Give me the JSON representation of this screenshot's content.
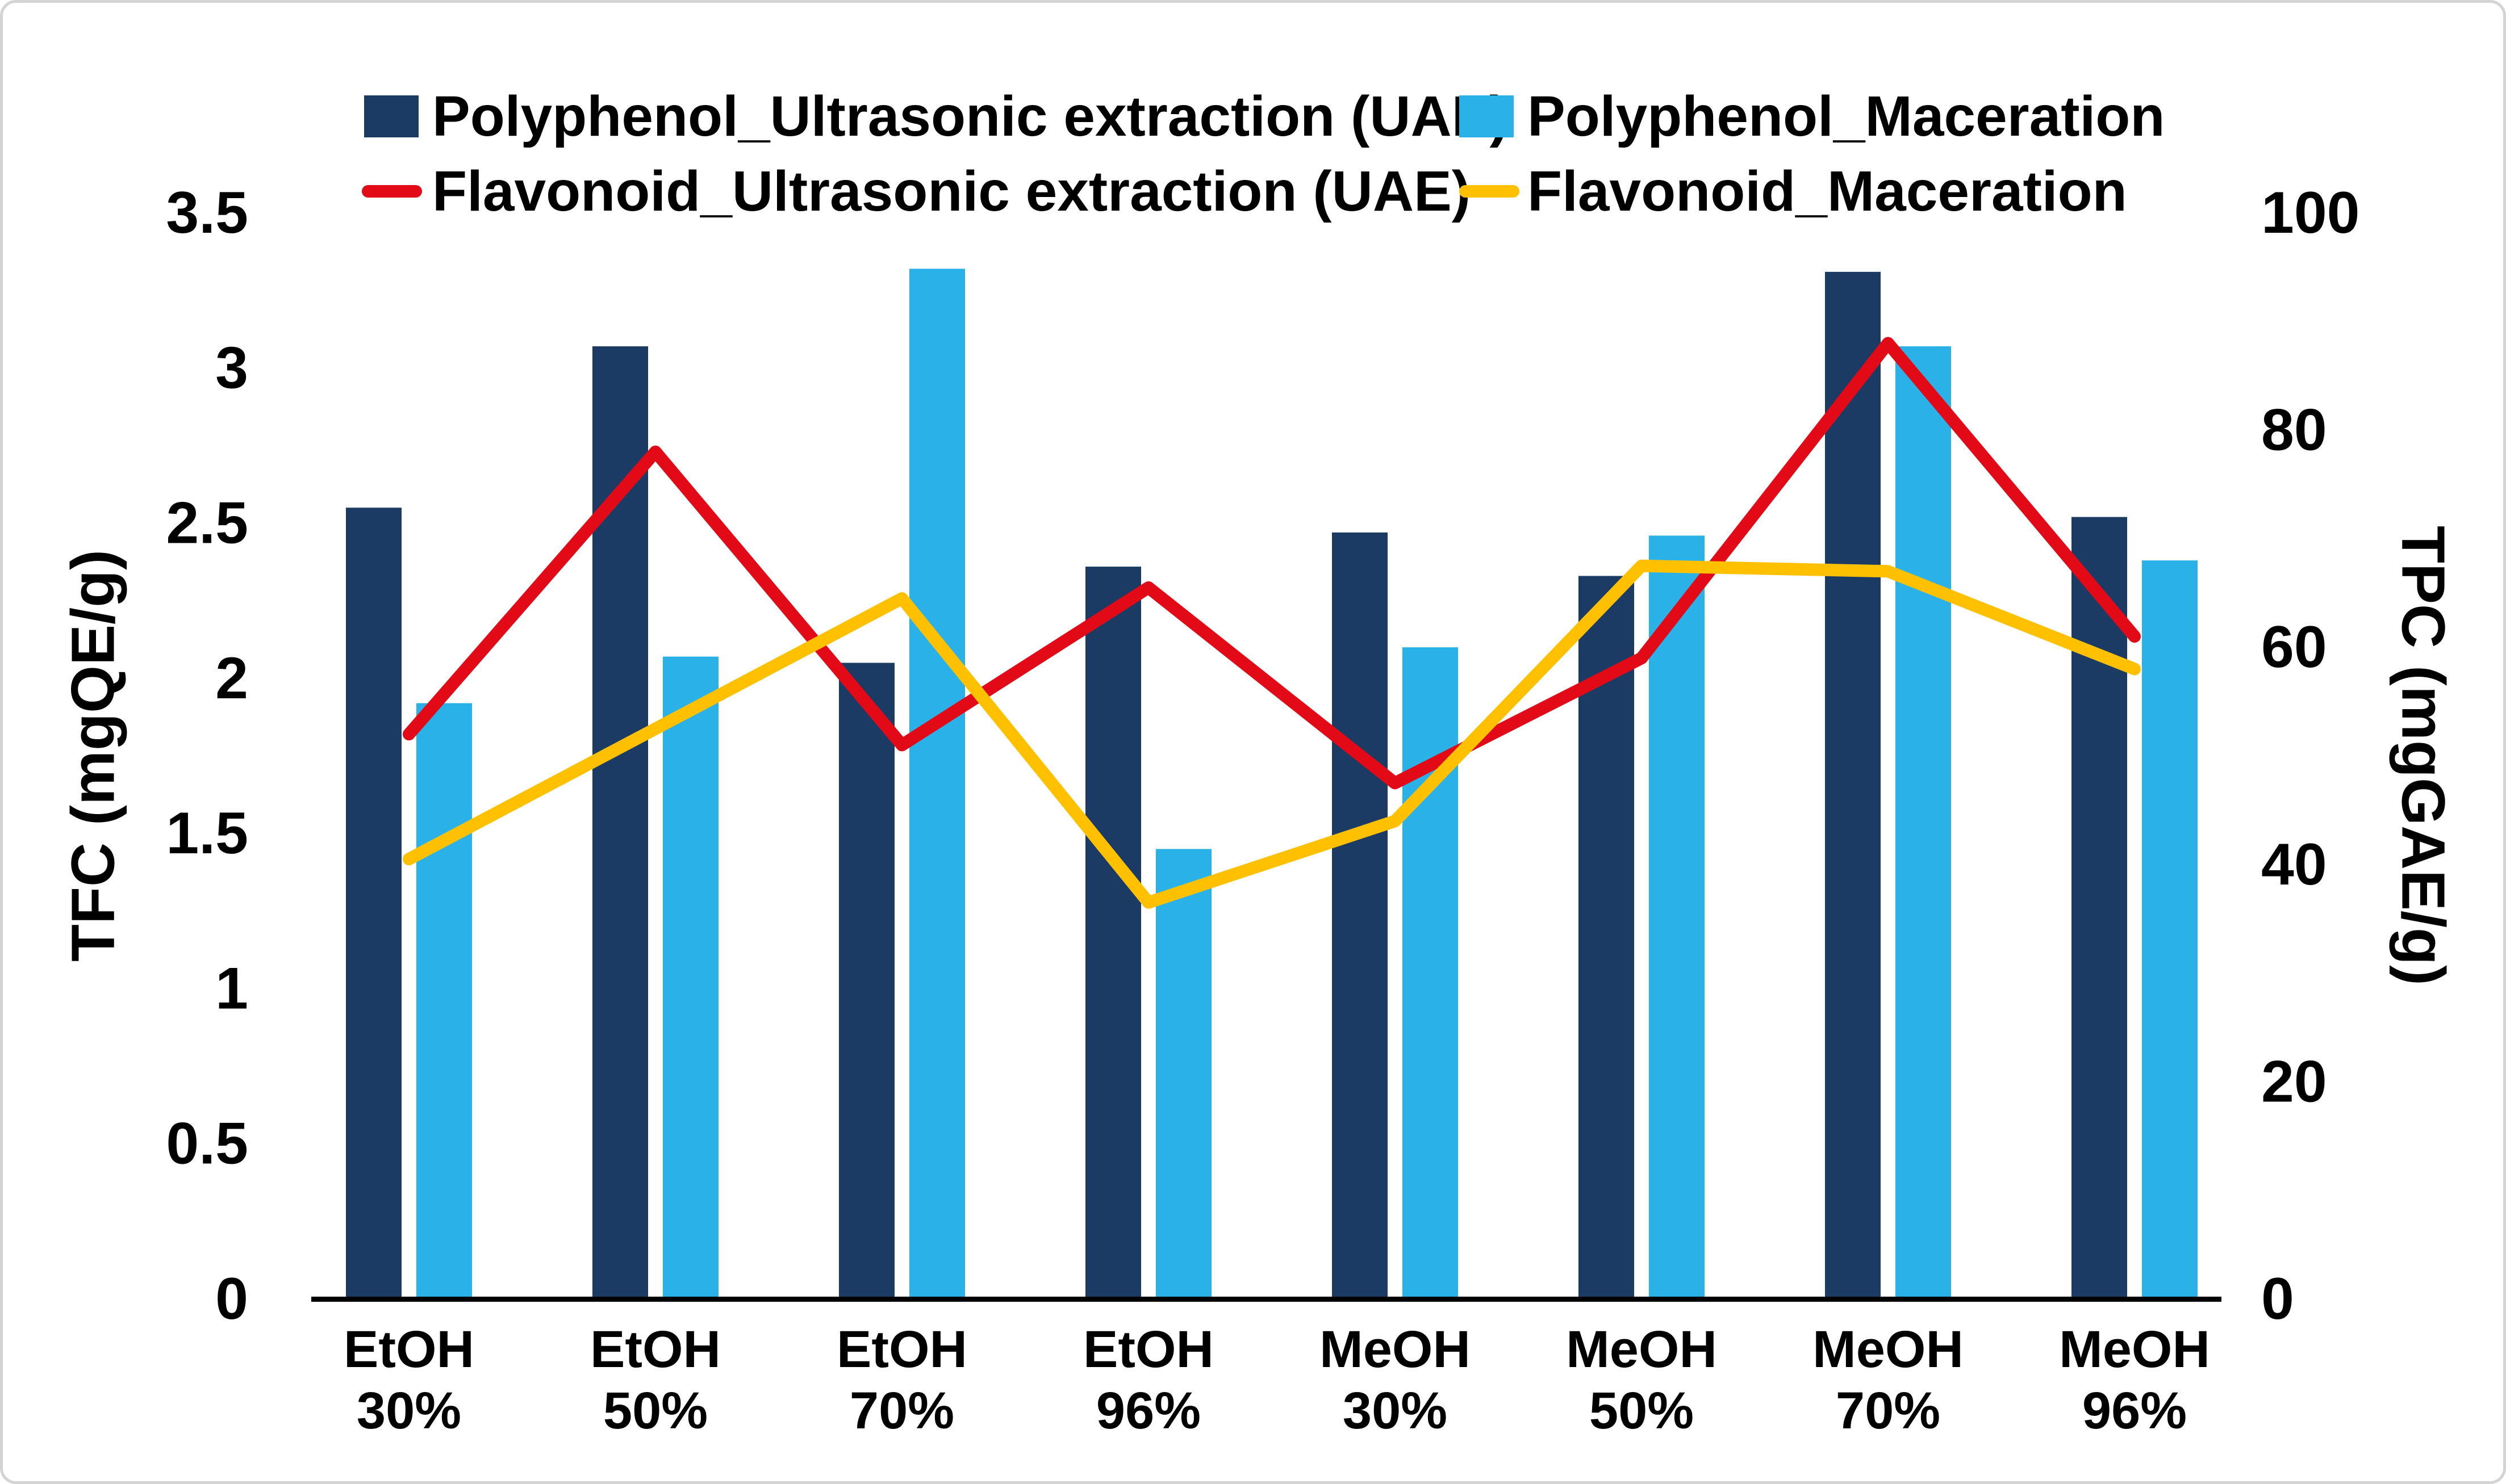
{
  "chart_data": {
    "type": "bar+line combo",
    "title": "",
    "categories": [
      {
        "solvent": "EtOH",
        "percent": "30%"
      },
      {
        "solvent": "EtOH",
        "percent": "50%"
      },
      {
        "solvent": "EtOH",
        "percent": "70%"
      },
      {
        "solvent": "EtOH",
        "percent": "96%"
      },
      {
        "solvent": "MeOH",
        "percent": "30%"
      },
      {
        "solvent": "MeOH",
        "percent": "50%"
      },
      {
        "solvent": "MeOH",
        "percent": "70%"
      },
      {
        "solvent": "MeOH",
        "percent": "96%"
      }
    ],
    "bar_series": [
      {
        "name": "Polyphenol_Ultrasonic extraction (UAE)",
        "axis": "left",
        "color_key": "navy",
        "values": [
          2.55,
          3.07,
          2.05,
          2.36,
          2.47,
          2.33,
          3.31,
          2.52
        ]
      },
      {
        "name": "Polyphenol_Maceration",
        "axis": "left",
        "color_key": "lightblue",
        "values": [
          1.92,
          2.07,
          3.32,
          1.45,
          2.1,
          2.46,
          3.07,
          2.38
        ]
      }
    ],
    "line_series": [
      {
        "name": "Flavonoid_Ultrasonic extraction (UAE)",
        "axis": "right",
        "color_key": "red",
        "values": [
          52,
          78,
          51,
          65.5,
          47.5,
          59,
          88,
          61
        ]
      },
      {
        "name": "Flavonoid_Maceration",
        "axis": "right",
        "color_key": "gold",
        "values": [
          40.5,
          52.5,
          64.5,
          36.5,
          44,
          67.5,
          67,
          58
        ]
      }
    ],
    "left_axis": {
      "label": "TFC (mgQE/g)",
      "min": 0,
      "max": 3.5,
      "ticks": [
        0,
        0.5,
        1,
        1.5,
        2,
        2.5,
        3,
        3.5
      ]
    },
    "right_axis": {
      "label": "TPC (mgGAE/g)",
      "min": 0,
      "max": 100,
      "ticks": [
        0,
        20,
        40,
        60,
        80,
        100
      ]
    },
    "grid": false,
    "legend_position": "top"
  },
  "colors": {
    "navy": "#1B3A64",
    "lightblue": "#29B1E8",
    "red": "#E30A18",
    "gold": "#FFC000",
    "axis": "#000000",
    "frame_border": "#D4D4D4"
  }
}
